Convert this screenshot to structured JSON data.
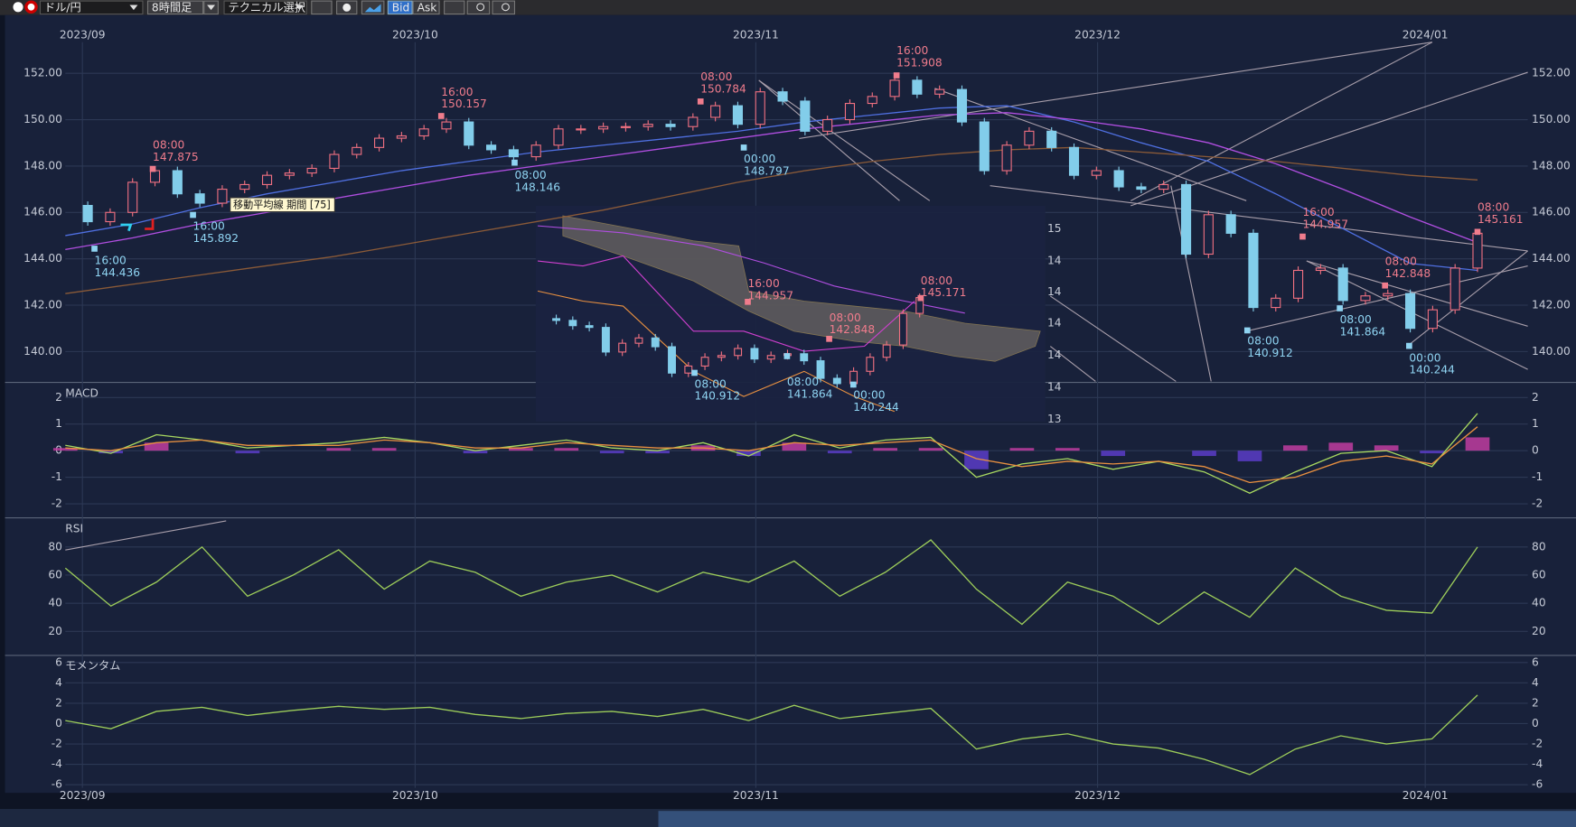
{
  "toolbar": {
    "pair": "ドル/円",
    "timeframe": "8時間足",
    "technical": "テクニカル選択",
    "bid": "Bid",
    "ask": "Ask"
  },
  "time_axis": [
    "2023/09",
    "2023/10",
    "2023/11",
    "2023/12",
    "2024/01"
  ],
  "main_chart": {
    "ylim": [
      138.67,
      154.51
    ],
    "yticks": [
      {
        "value": 152,
        "label": "152.00"
      },
      {
        "value": 150,
        "label": "150.00"
      },
      {
        "value": 148,
        "label": "148.00"
      },
      {
        "value": 146,
        "label": "146.00"
      },
      {
        "value": 144,
        "label": "144.00"
      },
      {
        "value": 142,
        "label": "142.00"
      },
      {
        "value": 140,
        "label": "140.00"
      }
    ],
    "candles": {
      "up_color": "#f07080",
      "down_color": "#82cdea",
      "values": [
        146.3,
        145.6,
        146.0,
        147.3,
        147.8,
        146.8,
        146.4,
        147.0,
        147.2,
        147.6,
        147.7,
        147.9,
        148.5,
        148.8,
        149.2,
        149.3,
        149.6,
        149.9,
        148.9,
        148.7,
        148.4,
        148.9,
        149.6,
        149.6,
        149.7,
        149.7,
        149.8,
        149.7,
        150.1,
        150.6,
        149.8,
        151.2,
        150.8,
        149.5,
        150.0,
        150.7,
        151.0,
        151.7,
        151.1,
        151.3,
        149.9,
        147.8,
        148.9,
        149.5,
        148.8,
        147.6,
        147.8,
        147.1,
        147.0,
        147.2,
        144.2,
        145.9,
        145.1,
        141.9,
        142.3,
        143.5,
        143.6,
        142.2,
        142.4,
        142.5,
        141.0,
        141.8,
        143.6,
        145.1
      ]
    },
    "series": [
      {
        "color": "#4f6fe0",
        "values": [
          145.0,
          145.5,
          146.2,
          146.8,
          147.3,
          147.8,
          148.2,
          148.6,
          148.9,
          149.2,
          149.5,
          149.9,
          150.2,
          150.5,
          150.6,
          149.9,
          149.0,
          148.2,
          146.8,
          145.3,
          143.8,
          143.5
        ]
      },
      {
        "color": "#b04ee0",
        "values": [
          144.4,
          144.9,
          145.5,
          146.0,
          146.6,
          147.1,
          147.6,
          148.0,
          148.4,
          148.8,
          149.2,
          149.6,
          149.9,
          150.2,
          150.3,
          150.0,
          149.6,
          149.0,
          148.1,
          147.0,
          145.8,
          144.7
        ]
      },
      {
        "color": "#8a5a38",
        "values": [
          142.5,
          142.9,
          143.3,
          143.7,
          144.1,
          144.6,
          145.1,
          145.6,
          146.1,
          146.7,
          147.3,
          147.8,
          148.2,
          148.5,
          148.7,
          148.8,
          148.6,
          148.4,
          148.2,
          147.9,
          147.6,
          147.4
        ]
      }
    ],
    "annotations": [
      {
        "time": "08:00",
        "price": 147.875,
        "kind": "high"
      },
      {
        "time": "16:00",
        "price": 144.436,
        "kind": "low"
      },
      {
        "time": "16:00",
        "price": 145.892,
        "kind": "low"
      },
      {
        "time": "16:00",
        "price": 150.157,
        "kind": "high"
      },
      {
        "time": "08:00",
        "price": 148.146,
        "kind": "low"
      },
      {
        "time": "08:00",
        "price": 150.784,
        "kind": "high"
      },
      {
        "time": "00:00",
        "price": 148.797,
        "kind": "low"
      },
      {
        "time": "16:00",
        "price": 151.908,
        "kind": "high"
      },
      {
        "time": "16:00",
        "price": 144.957,
        "kind": "high"
      },
      {
        "time": "08:00",
        "price": 142.848,
        "kind": "high"
      },
      {
        "time": "08:00",
        "price": 140.912,
        "kind": "low"
      },
      {
        "time": "08:00",
        "price": 141.864,
        "kind": "low"
      },
      {
        "time": "00:00",
        "price": 140.244,
        "kind": "low"
      },
      {
        "time": "08:00",
        "price": 145.161,
        "kind": "high"
      }
    ],
    "tooltip": "移動平均線 期間 [75]"
  },
  "inset": {
    "ylim": [
      138.14,
      150.43
    ],
    "axis_labels": [
      "15",
      "14",
      "14",
      "14",
      "14",
      "14",
      "13"
    ],
    "values": [
      144.0,
      143.9,
      143.6,
      143.5,
      142.1,
      142.6,
      142.9,
      142.4,
      140.9,
      141.3,
      141.8,
      141.9,
      142.3,
      141.7,
      141.9,
      142.0,
      141.6,
      140.6,
      140.3,
      141.0,
      141.8,
      142.5,
      144.3,
      145.2
    ],
    "annotations": [
      {
        "time": "16:00",
        "price": 144.957,
        "kind": "high"
      },
      {
        "time": "08:00",
        "price": 142.848,
        "kind": "high"
      },
      {
        "time": "08:00",
        "price": 145.171,
        "kind": "high"
      },
      {
        "time": "08:00",
        "price": 140.912,
        "kind": "low"
      },
      {
        "time": "08:00",
        "price": 141.864,
        "kind": "low"
      },
      {
        "time": "00:00",
        "price": 140.244,
        "kind": "low"
      }
    ]
  },
  "macd": {
    "label": "MACD",
    "ylim": [
      -2.53,
      2.57
    ],
    "yticks": [
      2,
      1,
      0,
      -1,
      -2
    ],
    "histogram": {
      "up_color": "#c03ca0",
      "down_color": "#5a3cc8",
      "values": [
        0.1,
        -0.1,
        0.3,
        0,
        -0.1,
        0,
        0.1,
        0.1,
        0,
        -0.1,
        0.1,
        0.1,
        -0.1,
        -0.1,
        0.2,
        -0.2,
        0.3,
        -0.1,
        0.1,
        0.1,
        -0.7,
        0.1,
        0.1,
        -0.2,
        0,
        -0.2,
        -0.4,
        0.2,
        0.3,
        0.2,
        -0.1,
        0.5
      ]
    },
    "series": [
      {
        "color": "#a8d860",
        "values": [
          0.2,
          -0.1,
          0.6,
          0.4,
          0.1,
          0.2,
          0.3,
          0.5,
          0.3,
          0.0,
          0.2,
          0.4,
          0.1,
          0.0,
          0.3,
          -0.2,
          0.6,
          0.1,
          0.4,
          0.5,
          -1.0,
          -0.5,
          -0.3,
          -0.7,
          -0.4,
          -0.8,
          -1.6,
          -0.8,
          -0.1,
          0.0,
          -0.6,
          1.4
        ]
      },
      {
        "color": "#e89040",
        "values": [
          0.1,
          0.0,
          0.3,
          0.4,
          0.2,
          0.2,
          0.2,
          0.4,
          0.3,
          0.1,
          0.1,
          0.3,
          0.2,
          0.1,
          0.1,
          0.0,
          0.3,
          0.2,
          0.3,
          0.4,
          -0.3,
          -0.6,
          -0.4,
          -0.5,
          -0.4,
          -0.6,
          -1.2,
          -1.0,
          -0.4,
          -0.2,
          -0.5,
          0.9
        ]
      }
    ]
  },
  "rsi": {
    "label": "RSI",
    "ylim": [
      2.9,
      100.7
    ],
    "yticks": [
      80,
      60,
      40,
      20
    ],
    "series": [
      {
        "color": "#9ccc5a",
        "values": [
          65,
          38,
          55,
          80,
          45,
          60,
          78,
          50,
          70,
          62,
          45,
          55,
          60,
          48,
          62,
          55,
          70,
          45,
          62,
          85,
          50,
          25,
          55,
          45,
          25,
          48,
          30,
          65,
          45,
          35,
          33,
          80
        ]
      }
    ]
  },
  "momentum": {
    "label": "モメンタム",
    "ylim": [
      -6.8,
      6.7
    ],
    "yticks": [
      6,
      4,
      2,
      0,
      -2,
      -4,
      -6
    ],
    "series": [
      {
        "color": "#9ccc5a",
        "values": [
          0.3,
          -0.5,
          1.2,
          1.6,
          0.8,
          1.3,
          1.7,
          1.4,
          1.6,
          0.9,
          0.5,
          1.0,
          1.2,
          0.7,
          1.4,
          0.3,
          1.8,
          0.5,
          1.0,
          1.5,
          -2.5,
          -1.5,
          -1.0,
          -2.0,
          -2.4,
          -3.5,
          -5.0,
          -2.5,
          -1.2,
          -2.0,
          -1.5,
          2.8
        ]
      }
    ]
  }
}
